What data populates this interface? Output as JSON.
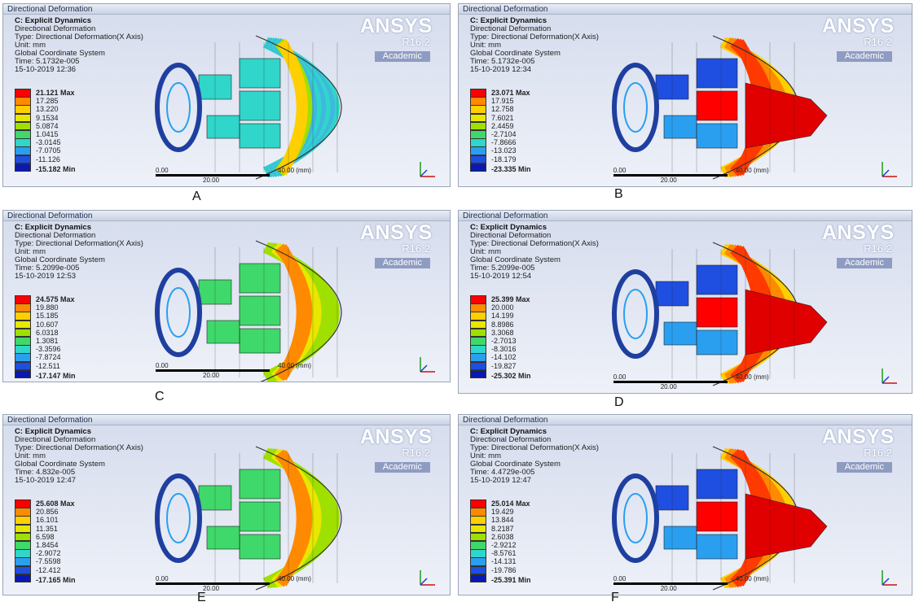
{
  "colors": {
    "legend": [
      "#ff0000",
      "#ff8a00",
      "#ffcf00",
      "#e7e700",
      "#9fe000",
      "#3fd86a",
      "#2fd6c9",
      "#2a9ff0",
      "#1f4fe0",
      "#0a18b0"
    ]
  },
  "panels": [
    {
      "title": "Directional Deformation",
      "label": "A",
      "info": [
        "C: Explicit Dynamics",
        "Directional Deformation",
        "Type: Directional Deformation(X Axis)",
        "Unit: mm",
        "Global Coordinate System",
        "Time: 5.1732e-005",
        "15-10-2019 12:36"
      ],
      "legend_values": [
        "21.121 Max",
        "17.285",
        "13.220",
        "9.1534",
        "5.0874",
        "1.0415",
        "-3.0145",
        "-7.0705",
        "-11.126",
        "-15.182 Min"
      ],
      "scale": {
        "start": "0.00",
        "mid": "20.00",
        "end": "40.00 (mm)"
      },
      "brand": {
        "name": "ANSYS",
        "version": "R16.2",
        "edition": "Academic"
      },
      "fill_scheme": "cool"
    },
    {
      "title": "Directional Deformation",
      "label": "B",
      "info": [
        "C: Explicit Dynamics",
        "Directional Deformation",
        "Type: Directional Deformation(X Axis)",
        "Unit: mm",
        "Global Coordinate System",
        "Time: 5.1732e-005",
        "15-10-2019 12:34"
      ],
      "legend_values": [
        "23.071 Max",
        "17.915",
        "12.758",
        "7.6021",
        "2.4459",
        "-2.7104",
        "-7.8666",
        "-13.023",
        "-18.179",
        "-23.335 Min"
      ],
      "scale": {
        "start": "0.00",
        "mid": "20.00",
        "end": "40.00 (mm)"
      },
      "brand": {
        "name": "ANSYS",
        "version": "R16.2",
        "edition": "Academic"
      },
      "fill_scheme": "hot"
    },
    {
      "title": "Directional Deformation",
      "label": "C",
      "info": [
        "C: Explicit Dynamics",
        "Directional Deformation",
        "Type: Directional Deformation(X Axis)",
        "Unit: mm",
        "Global Coordinate System",
        "Time: 5.2099e-005",
        "15-10-2019 12:53"
      ],
      "legend_values": [
        "24.575 Max",
        "19.880",
        "15.185",
        "10.607",
        "6.0318",
        "1.3081",
        "-3.3596",
        "-7.8724",
        "-12.511",
        "-17.147 Min"
      ],
      "scale": {
        "start": "0.00",
        "mid": "20.00",
        "end": "40.00 (mm)"
      },
      "brand": {
        "name": "ANSYS",
        "version": "R16.2",
        "edition": "Academic"
      },
      "fill_scheme": "green"
    },
    {
      "title": "Directional Deformation",
      "label": "D",
      "info": [
        "C: Explicit Dynamics",
        "Directional Deformation",
        "Type: Directional Deformation(X Axis)",
        "Unit: mm",
        "Global Coordinate System",
        "Time: 5.2099e-005",
        "15-10-2019 12:54"
      ],
      "legend_values": [
        "25.399 Max",
        "20.000",
        "14.199",
        "8.8986",
        "3.3068",
        "-2.7013",
        "-8.3016",
        "-14.102",
        "-19.827",
        "-25.302 Min"
      ],
      "scale": {
        "start": "0.00",
        "mid": "20.00",
        "end": "40.00 (mm)"
      },
      "brand": {
        "name": "ANSYS",
        "version": "R16.2",
        "edition": "Academic"
      },
      "fill_scheme": "hot"
    },
    {
      "title": "Directional Deformation",
      "label": "E",
      "info": [
        "C: Explicit Dynamics",
        "Directional Deformation",
        "Type: Directional Deformation(X Axis)",
        "Unit: mm",
        "Global Coordinate System",
        "Time: 4.832e-005",
        "15-10-2019 12:47"
      ],
      "legend_values": [
        "25.608 Max",
        "20.856",
        "16.101",
        "11.351",
        "6.598",
        "1.8454",
        "-2.9072",
        "-7.5598",
        "-12.412",
        "-17.165 Min"
      ],
      "scale": {
        "start": "0.00",
        "mid": "20.00",
        "end": "40.00 (mm)"
      },
      "brand": {
        "name": "ANSYS",
        "version": "R16.2",
        "edition": "Academic"
      },
      "fill_scheme": "green"
    },
    {
      "title": "Directional Deformation",
      "label": "F",
      "info": [
        "C: Explicit Dynamics",
        "Directional Deformation",
        "Type: Directional Deformation(X Axis)",
        "Unit: mm",
        "Global Coordinate System",
        "Time: 4.4729e-005",
        "15-10-2019 12:47"
      ],
      "legend_values": [
        "25.014 Max",
        "19.429",
        "13.844",
        "8.2187",
        "2.6038",
        "-2.9212",
        "-8.5761",
        "-14.131",
        "-19.786",
        "-25.391 Min"
      ],
      "scale": {
        "start": "0.00",
        "mid": "20.00",
        "end": "40.00 (mm)"
      },
      "brand": {
        "name": "ANSYS",
        "version": "R16.2",
        "edition": "Academic"
      },
      "fill_scheme": "hot"
    }
  ]
}
